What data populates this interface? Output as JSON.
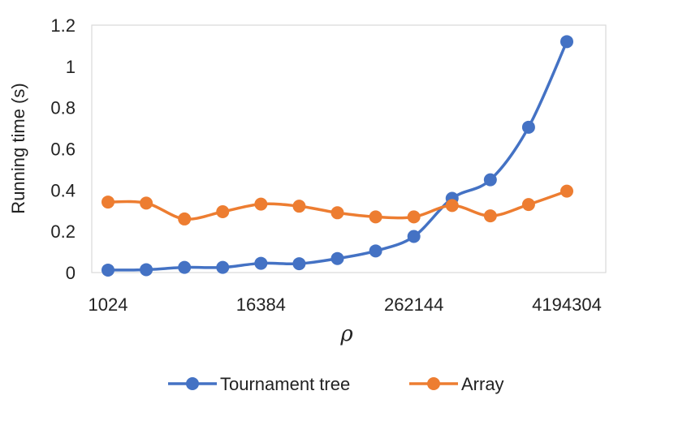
{
  "chart_data": {
    "type": "line",
    "title": "",
    "xlabel": "ρ",
    "ylabel": "Running time (s)",
    "x_tick_labels": [
      "1024",
      "16384",
      "262144",
      "4194304"
    ],
    "y_tick_labels": [
      "0",
      "0.2",
      "0.4",
      "0.6",
      "0.8",
      "1",
      "1.2"
    ],
    "ylim": [
      0,
      1.2
    ],
    "x": [
      1024,
      2048,
      4096,
      8192,
      16384,
      32768,
      65536,
      131072,
      262144,
      524288,
      1048576,
      2097152,
      4194304
    ],
    "x_scale": "log2",
    "grid": false,
    "smoothed": true,
    "legend_position": "bottom",
    "series": [
      {
        "name": "Tournament tree",
        "color": "#4472C4",
        "values": [
          0.012,
          0.014,
          0.025,
          0.025,
          0.045,
          0.043,
          0.068,
          0.105,
          0.175,
          0.36,
          0.45,
          0.705,
          1.12
        ]
      },
      {
        "name": "Array",
        "color": "#ED7D31",
        "values": [
          0.342,
          0.337,
          0.26,
          0.295,
          0.332,
          0.322,
          0.29,
          0.27,
          0.27,
          0.325,
          0.275,
          0.33,
          0.395
        ]
      }
    ]
  }
}
